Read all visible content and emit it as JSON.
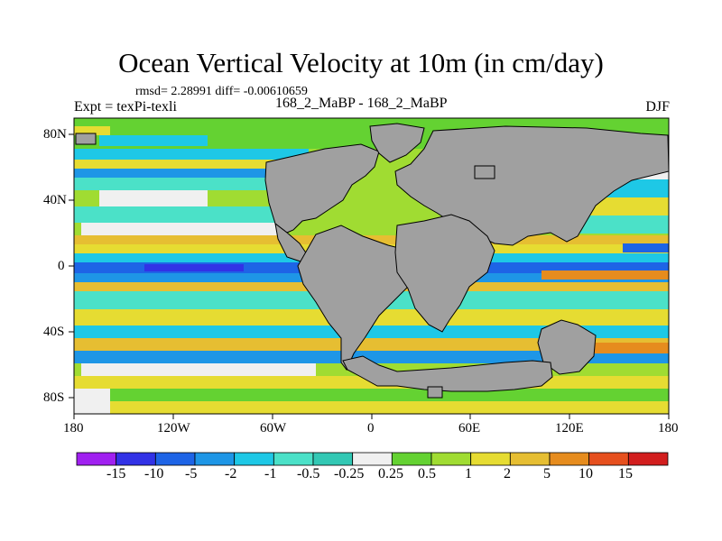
{
  "title": "Ocean Vertical Velocity at 10m (in cm/day)",
  "subtitle": "rmsd= 2.28991 diff= -0.00610659",
  "left_string": "Expt = texPi-texli",
  "center_string": "168_2_MaBP - 168_2_MaBP",
  "right_string": "DJF",
  "map": {
    "projection": "cylindrical-equidistant",
    "lon_range": [
      -180,
      180
    ],
    "lat_range": [
      -90,
      90
    ],
    "land_color": "#a0a0a0",
    "x_ticks": [
      "180",
      "120W",
      "60W",
      "0",
      "60E",
      "120E",
      "180"
    ],
    "y_ticks": [
      "80N",
      "40N",
      "0",
      "40S",
      "80S"
    ]
  },
  "colorbar": {
    "labels": [
      "-15",
      "-10",
      "-5",
      "-2",
      "-1",
      "-0.5",
      "-0.25",
      "0.25",
      "0.5",
      "1",
      "2",
      "5",
      "10",
      "15"
    ],
    "colors": [
      "#a020f0",
      "#3232e6",
      "#1e64e6",
      "#1e96e6",
      "#1ec8e6",
      "#4be1c8",
      "#32c8b4",
      "#f0f0f0",
      "#64d232",
      "#a0dc32",
      "#e6dc32",
      "#e6be32",
      "#e68c1e",
      "#e6501e",
      "#d21e1e"
    ]
  }
}
